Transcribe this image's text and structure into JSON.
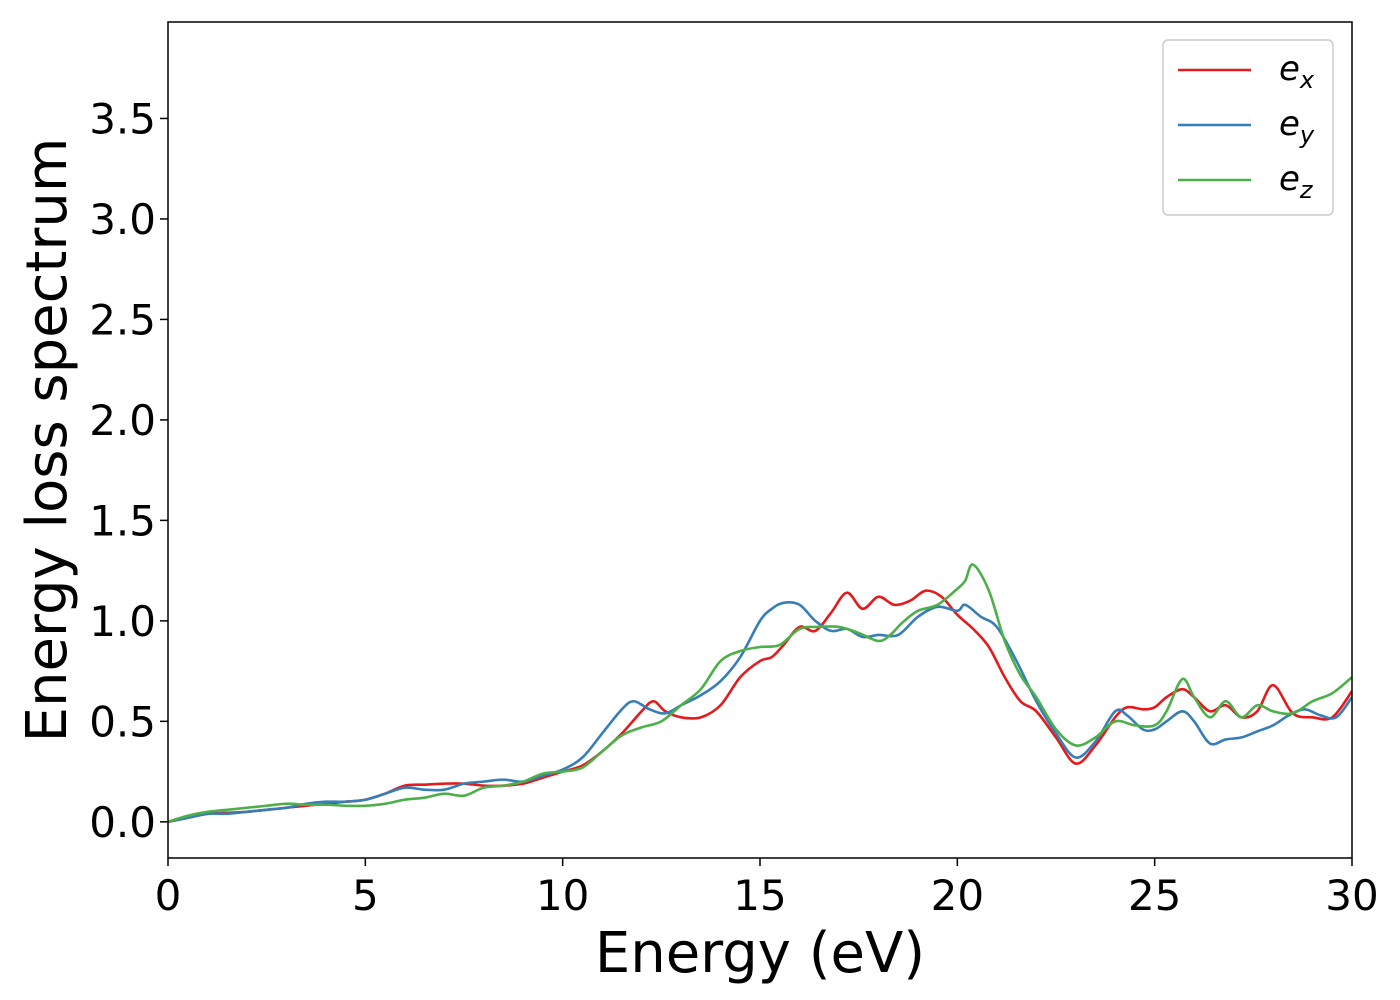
{
  "chart_data": {
    "type": "line",
    "xlabel": "Energy (eV)",
    "ylabel": "Energy loss spectrum",
    "xlim": [
      0,
      30
    ],
    "ylim": [
      -0.18,
      3.98
    ],
    "xticks": [
      0,
      5,
      10,
      15,
      20,
      25,
      30
    ],
    "xtick_labels": [
      "0",
      "5",
      "10",
      "15",
      "20",
      "25",
      "30"
    ],
    "yticks": [
      0.0,
      0.5,
      1.0,
      1.5,
      2.0,
      2.5,
      3.0,
      3.5
    ],
    "ytick_labels": [
      "0.0",
      "0.5",
      "1.0",
      "1.5",
      "2.0",
      "2.5",
      "3.0",
      "3.5"
    ],
    "grid": false,
    "legend_position": "top-right",
    "series": [
      {
        "name": "e",
        "subscript": "x",
        "color": "#e41a1c",
        "x": [
          0,
          0.5,
          1,
          1.5,
          2,
          2.5,
          3,
          3.5,
          4,
          4.5,
          5,
          5.5,
          6,
          6.5,
          7,
          7.5,
          8,
          8.5,
          9,
          9.5,
          10,
          10.5,
          11,
          11.5,
          12,
          12.3,
          12.6,
          13,
          13.5,
          14,
          14.5,
          15,
          15.3,
          15.6,
          16,
          16.4,
          16.8,
          17.2,
          17.6,
          18,
          18.4,
          18.8,
          19.2,
          19.6,
          20,
          20.4,
          20.8,
          21.2,
          21.6,
          22,
          22.5,
          23,
          23.5,
          24,
          24.3,
          24.7,
          25,
          25.3,
          25.7,
          26,
          26.4,
          26.8,
          27.2,
          27.6,
          28,
          28.5,
          29,
          29.5,
          30
        ],
        "y": [
          0.0,
          0.02,
          0.04,
          0.045,
          0.05,
          0.06,
          0.07,
          0.08,
          0.09,
          0.1,
          0.11,
          0.14,
          0.18,
          0.185,
          0.19,
          0.19,
          0.18,
          0.18,
          0.19,
          0.22,
          0.25,
          0.28,
          0.35,
          0.44,
          0.55,
          0.6,
          0.55,
          0.52,
          0.52,
          0.58,
          0.72,
          0.8,
          0.82,
          0.88,
          0.97,
          0.95,
          1.04,
          1.14,
          1.06,
          1.12,
          1.08,
          1.1,
          1.15,
          1.12,
          1.03,
          0.96,
          0.87,
          0.72,
          0.6,
          0.55,
          0.42,
          0.29,
          0.38,
          0.52,
          0.57,
          0.56,
          0.57,
          0.62,
          0.66,
          0.62,
          0.55,
          0.58,
          0.52,
          0.55,
          0.68,
          0.54,
          0.52,
          0.52,
          0.65
        ]
      },
      {
        "name": "e",
        "subscript": "y",
        "color": "#377eb8",
        "x": [
          0,
          0.5,
          1,
          1.5,
          2,
          2.5,
          3,
          3.5,
          4,
          4.5,
          5,
          5.5,
          6,
          6.5,
          7,
          7.5,
          8,
          8.5,
          9,
          9.5,
          10,
          10.5,
          11,
          11.5,
          11.8,
          12.2,
          12.6,
          13,
          13.5,
          14,
          14.5,
          15,
          15.3,
          15.6,
          16,
          16.4,
          16.8,
          17.2,
          17.6,
          18,
          18.5,
          19,
          19.5,
          20,
          20.2,
          20.6,
          21,
          21.5,
          22,
          22.5,
          23,
          23.5,
          24,
          24.3,
          24.7,
          25,
          25.3,
          25.7,
          26,
          26.4,
          26.8,
          27.2,
          27.6,
          28,
          28.4,
          28.8,
          29.2,
          29.6,
          30
        ],
        "y": [
          0.0,
          0.02,
          0.04,
          0.04,
          0.05,
          0.06,
          0.07,
          0.09,
          0.1,
          0.1,
          0.11,
          0.14,
          0.17,
          0.16,
          0.16,
          0.19,
          0.2,
          0.21,
          0.2,
          0.23,
          0.26,
          0.32,
          0.44,
          0.56,
          0.6,
          0.56,
          0.54,
          0.58,
          0.63,
          0.7,
          0.82,
          1.0,
          1.06,
          1.09,
          1.08,
          1.0,
          0.95,
          0.96,
          0.92,
          0.93,
          0.93,
          1.02,
          1.07,
          1.05,
          1.08,
          1.02,
          0.97,
          0.8,
          0.6,
          0.44,
          0.32,
          0.4,
          0.55,
          0.53,
          0.46,
          0.46,
          0.5,
          0.55,
          0.5,
          0.39,
          0.41,
          0.42,
          0.45,
          0.48,
          0.53,
          0.56,
          0.53,
          0.52,
          0.62
        ]
      },
      {
        "name": "e",
        "subscript": "z",
        "color": "#4daf4a",
        "x": [
          0,
          0.5,
          1,
          1.5,
          2,
          2.5,
          3,
          3.5,
          4,
          4.5,
          5,
          5.5,
          6,
          6.5,
          7,
          7.5,
          8,
          8.5,
          9,
          9.5,
          10,
          10.5,
          11,
          11.5,
          12,
          12.5,
          13,
          13.5,
          14,
          14.5,
          15,
          15.5,
          16,
          16.5,
          17,
          17.5,
          18,
          18.3,
          18.6,
          19,
          19.5,
          20,
          20.2,
          20.4,
          20.8,
          21.2,
          21.6,
          22,
          22.5,
          23,
          23.5,
          24,
          24.5,
          25,
          25.3,
          25.7,
          26,
          26.4,
          26.8,
          27.2,
          27.6,
          28,
          28.5,
          29,
          29.5,
          30
        ],
        "y": [
          0.0,
          0.03,
          0.05,
          0.06,
          0.07,
          0.08,
          0.09,
          0.085,
          0.085,
          0.08,
          0.08,
          0.09,
          0.11,
          0.12,
          0.14,
          0.13,
          0.17,
          0.18,
          0.2,
          0.24,
          0.25,
          0.27,
          0.35,
          0.43,
          0.47,
          0.5,
          0.58,
          0.66,
          0.8,
          0.85,
          0.87,
          0.88,
          0.96,
          0.97,
          0.97,
          0.94,
          0.9,
          0.93,
          0.99,
          1.05,
          1.08,
          1.16,
          1.2,
          1.28,
          1.15,
          0.9,
          0.73,
          0.62,
          0.46,
          0.38,
          0.42,
          0.5,
          0.48,
          0.48,
          0.55,
          0.71,
          0.62,
          0.52,
          0.6,
          0.52,
          0.58,
          0.55,
          0.54,
          0.6,
          0.64,
          0.72
        ]
      }
    ]
  }
}
